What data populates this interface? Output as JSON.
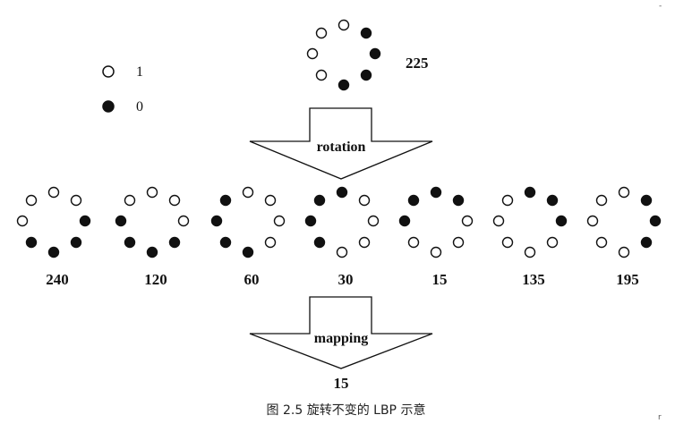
{
  "legend": {
    "white_label": "1",
    "black_label": "0"
  },
  "top_pattern": {
    "bits": [
      1,
      1,
      0,
      0,
      0,
      0,
      1,
      1
    ],
    "value": "225"
  },
  "rotation_label": "rotation",
  "patterns": [
    {
      "value": "240",
      "bits": [
        1,
        1,
        1,
        0,
        0,
        0,
        0,
        1
      ]
    },
    {
      "value": "120",
      "bits": [
        1,
        1,
        1,
        1,
        0,
        0,
        0,
        0
      ]
    },
    {
      "value": "60",
      "bits": [
        0,
        1,
        1,
        1,
        1,
        0,
        0,
        0
      ]
    },
    {
      "value": "30",
      "bits": [
        0,
        0,
        1,
        1,
        1,
        1,
        0,
        0
      ]
    },
    {
      "value": "15",
      "bits": [
        0,
        0,
        0,
        1,
        1,
        1,
        1,
        0
      ]
    },
    {
      "value": "135",
      "bits": [
        1,
        0,
        0,
        0,
        1,
        1,
        1,
        1
      ]
    },
    {
      "value": "195",
      "bits": [
        1,
        1,
        0,
        0,
        0,
        1,
        1,
        1
      ]
    }
  ],
  "mapping_label": "mapping",
  "result_value": "15",
  "caption": "图 2.5  旋转不变的 LBP 示意",
  "colors": {
    "ink": "#111111",
    "background": "#ffffff"
  }
}
